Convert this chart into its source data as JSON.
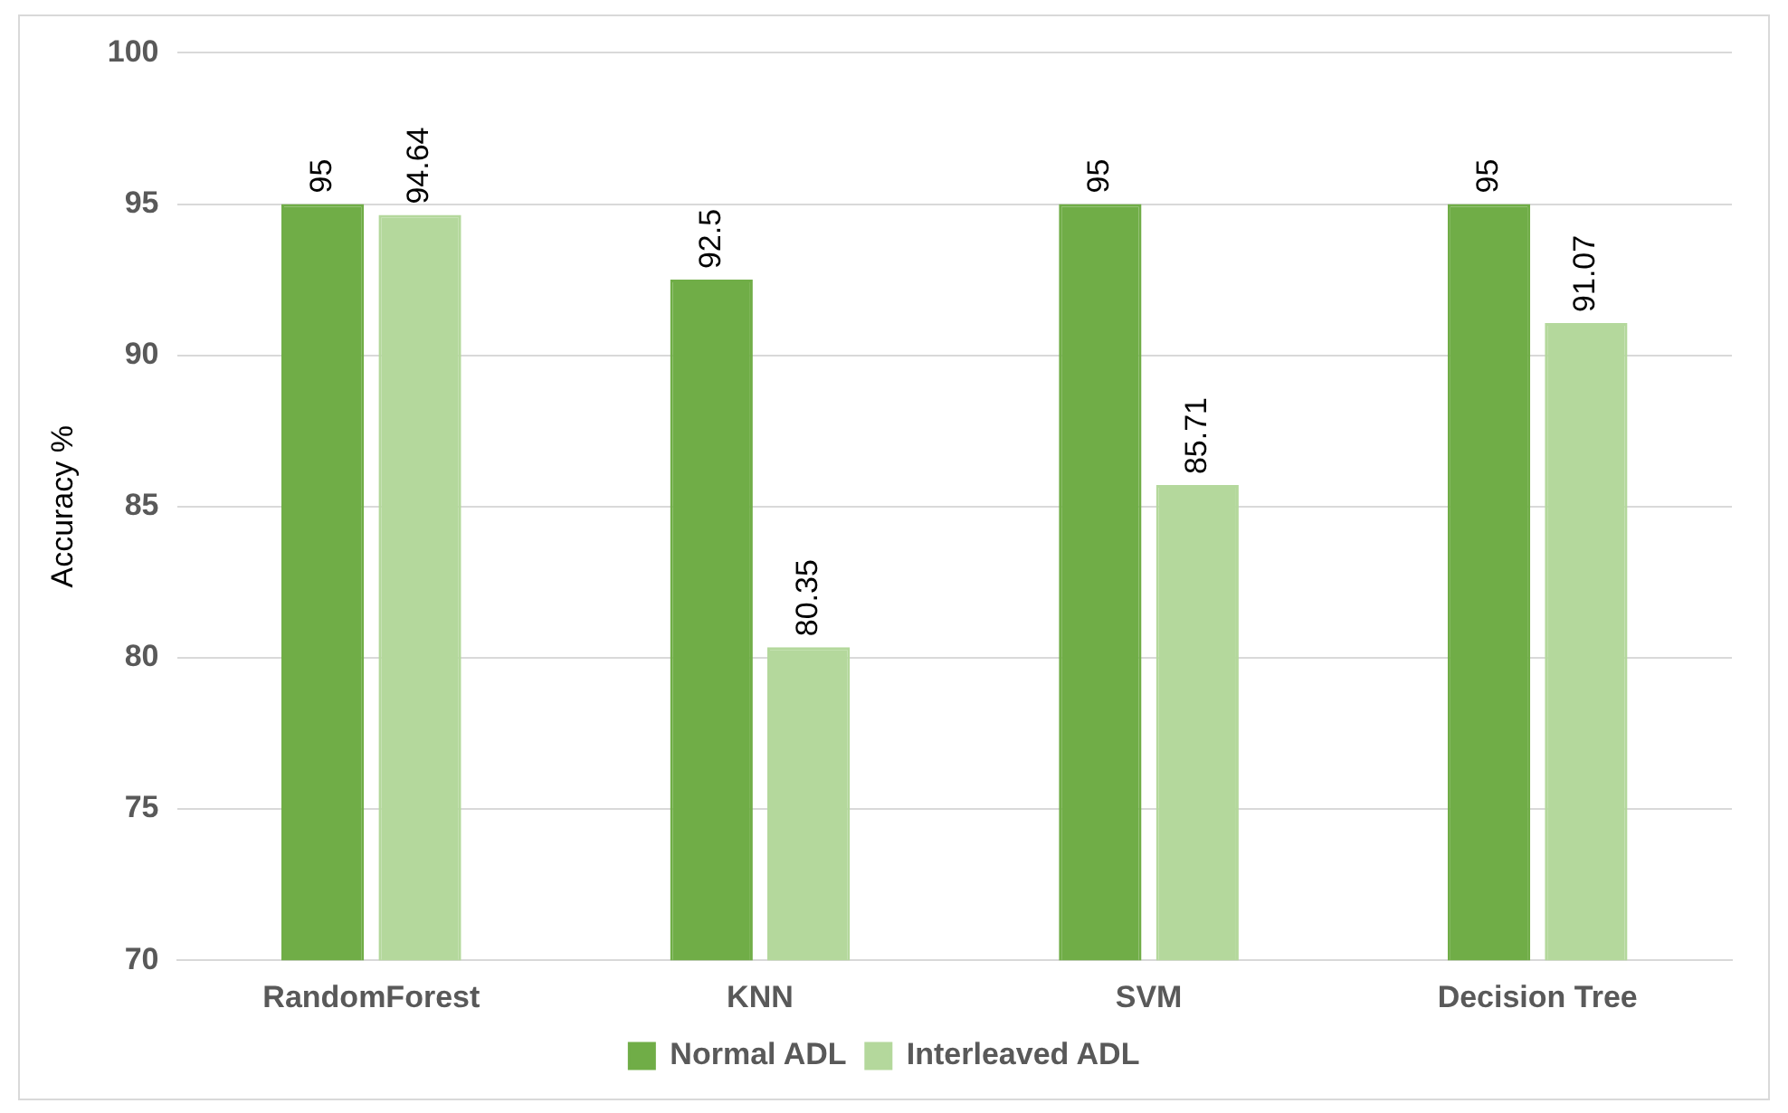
{
  "chart_data": {
    "type": "bar",
    "ylabel": "Accuracy %",
    "categories": [
      "RandomForest",
      "KNN",
      "SVM",
      "Decision Tree"
    ],
    "series": [
      {
        "name": "Normal ADL",
        "color": "#70ad47",
        "values": [
          95,
          92.5,
          95,
          95
        ]
      },
      {
        "name": "Interleaved ADL",
        "color": "#b4d89c",
        "values": [
          94.64,
          80.35,
          85.71,
          91.07
        ]
      }
    ],
    "ylim": [
      70,
      100
    ],
    "yticks": [
      70,
      75,
      80,
      85,
      90,
      95,
      100
    ],
    "grid": "y",
    "legend": "bottom",
    "data_labels": true
  }
}
